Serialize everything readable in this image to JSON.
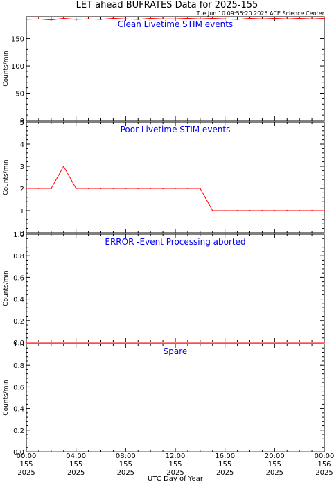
{
  "title": "LET ahead BUFRATES Data for 2025-155",
  "timestamp": "Tue Jun 10 09:55:20 2025 ACE Science Center",
  "xlabel": "UTC Day of Year",
  "colors": {
    "series": "#ff0000",
    "panel_label": "#0000ee"
  },
  "chart_data": [
    {
      "type": "line",
      "title": "Clean Livetime STIM events",
      "ylabel": "Counts/min",
      "ylim": [
        0,
        190
      ],
      "yticks": [
        "0",
        "50",
        "100",
        "150"
      ],
      "ytick_values": [
        0,
        50,
        100,
        150
      ],
      "x": [
        0,
        1,
        2,
        3,
        4,
        5,
        6,
        7,
        8,
        9,
        10,
        11,
        12,
        13,
        14,
        15,
        16,
        17,
        18,
        19,
        20,
        21,
        22,
        23,
        24
      ],
      "values": [
        185,
        186,
        184,
        187,
        185,
        186,
        185,
        187,
        186,
        185,
        187,
        186,
        186,
        187,
        186,
        187,
        186,
        185,
        187,
        186,
        187,
        186,
        187,
        186,
        187
      ]
    },
    {
      "type": "line",
      "title": "Poor Livetime STIM events",
      "ylabel": "Counts/min",
      "ylim": [
        0,
        5
      ],
      "yticks": [
        "0",
        "1",
        "2",
        "3",
        "4",
        "5"
      ],
      "ytick_values": [
        0,
        1,
        2,
        3,
        4,
        5
      ],
      "x": [
        0,
        1,
        2,
        3,
        4,
        5,
        6,
        7,
        8,
        9,
        10,
        11,
        12,
        13,
        14,
        15,
        16,
        17,
        18,
        19,
        20,
        21,
        22,
        23,
        24
      ],
      "values": [
        2,
        2,
        2,
        3,
        2,
        2,
        2,
        2,
        2,
        2,
        2,
        2,
        2,
        2,
        2,
        1,
        1,
        1,
        1,
        1,
        1,
        1,
        1,
        1,
        1
      ]
    },
    {
      "type": "line",
      "title": "ERROR -Event Processing aborted",
      "ylabel": "Counts/min",
      "ylim": [
        0,
        1
      ],
      "yticks": [
        "0.0",
        "0.2",
        "0.4",
        "0.6",
        "0.8",
        "1.0"
      ],
      "ytick_values": [
        0,
        0.2,
        0.4,
        0.6,
        0.8,
        1.0
      ],
      "x": [
        0,
        24
      ],
      "values": [
        0,
        0
      ]
    },
    {
      "type": "line",
      "title": "Spare",
      "ylabel": "Counts/min",
      "ylim": [
        0,
        1
      ],
      "yticks": [
        "0.0",
        "0.2",
        "0.4",
        "0.6",
        "0.8",
        "1.0"
      ],
      "ytick_values": [
        0,
        0.2,
        0.4,
        0.6,
        0.8,
        1.0
      ],
      "x": [
        0,
        24
      ],
      "values": [
        0,
        0
      ]
    }
  ],
  "xticks": [
    {
      "value": 0,
      "time": "00:00",
      "doy": "155",
      "year": "2025"
    },
    {
      "value": 4,
      "time": "04:00",
      "doy": "155",
      "year": "2025"
    },
    {
      "value": 8,
      "time": "08:00",
      "doy": "155",
      "year": "2025"
    },
    {
      "value": 12,
      "time": "12:00",
      "doy": "155",
      "year": "2025"
    },
    {
      "value": 16,
      "time": "16:00",
      "doy": "155",
      "year": "2025"
    },
    {
      "value": 20,
      "time": "20:00",
      "doy": "155",
      "year": "2025"
    },
    {
      "value": 24,
      "time": "00:00",
      "doy": "156",
      "year": "2025"
    }
  ]
}
